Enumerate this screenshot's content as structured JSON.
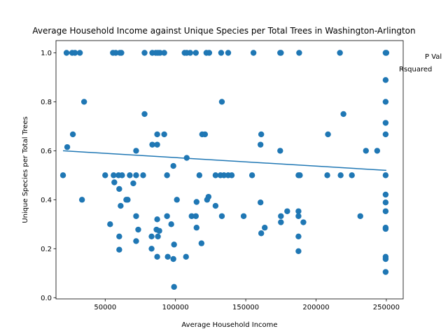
{
  "chart_data": {
    "type": "scatter",
    "title": "Average Household Income against Unique Species per Total Trees in Washington-Arlington",
    "xlabel": "Average Household Income",
    "ylabel": "Unique Species per Total Trees",
    "xlim": [
      15000,
      262000
    ],
    "ylim": [
      -0.005,
      1.05
    ],
    "xticks": [
      50000,
      100000,
      150000,
      200000,
      250000
    ],
    "yticks": [
      0.0,
      0.2,
      0.4,
      0.6,
      0.8,
      1.0
    ],
    "xtick_labels": [
      "50000",
      "100000",
      "150000",
      "200000",
      "250000"
    ],
    "ytick_labels": [
      "0.0",
      "0.2",
      "0.4",
      "0.6",
      "0.8",
      "1.0"
    ],
    "annotations": [
      "P Val",
      "Rsquared"
    ],
    "point_color": "#1f77b4",
    "grid": false,
    "legend": "none",
    "trendline": {
      "x": [
        20000,
        250000
      ],
      "y": [
        0.6,
        0.52
      ]
    },
    "points": [
      [
        22500,
        1.0
      ],
      [
        26500,
        1.0
      ],
      [
        28500,
        1.0
      ],
      [
        32000,
        1.0
      ],
      [
        55500,
        1.0
      ],
      [
        57500,
        1.0
      ],
      [
        60500,
        1.0
      ],
      [
        61500,
        1.0
      ],
      [
        78000,
        1.0
      ],
      [
        83500,
        1.0
      ],
      [
        86000,
        1.0
      ],
      [
        87500,
        1.0
      ],
      [
        89000,
        1.0
      ],
      [
        92000,
        1.0
      ],
      [
        106500,
        1.0
      ],
      [
        108000,
        1.0
      ],
      [
        110500,
        1.0
      ],
      [
        114500,
        1.0
      ],
      [
        122000,
        1.0
      ],
      [
        124000,
        1.0
      ],
      [
        132500,
        1.0
      ],
      [
        137500,
        1.0
      ],
      [
        155500,
        1.0
      ],
      [
        174500,
        1.0
      ],
      [
        175000,
        1.0
      ],
      [
        188000,
        1.0
      ],
      [
        217000,
        1.0
      ],
      [
        249500,
        1.0
      ],
      [
        250000,
        1.0
      ],
      [
        249500,
        0.889
      ],
      [
        35000,
        0.8
      ],
      [
        133000,
        0.8
      ],
      [
        249500,
        0.8
      ],
      [
        78000,
        0.75
      ],
      [
        219500,
        0.75
      ],
      [
        249500,
        0.714
      ],
      [
        27000,
        0.667
      ],
      [
        87000,
        0.667
      ],
      [
        92000,
        0.667
      ],
      [
        119000,
        0.667
      ],
      [
        121000,
        0.667
      ],
      [
        161000,
        0.667
      ],
      [
        208500,
        0.667
      ],
      [
        249500,
        0.667
      ],
      [
        83500,
        0.625
      ],
      [
        87000,
        0.625
      ],
      [
        160500,
        0.625
      ],
      [
        23000,
        0.615
      ],
      [
        72000,
        0.6
      ],
      [
        174500,
        0.6
      ],
      [
        235500,
        0.6
      ],
      [
        243500,
        0.6
      ],
      [
        108000,
        0.571
      ],
      [
        98500,
        0.538
      ],
      [
        20000,
        0.5
      ],
      [
        50000,
        0.5
      ],
      [
        56000,
        0.5
      ],
      [
        59500,
        0.5
      ],
      [
        62000,
        0.5
      ],
      [
        67500,
        0.5
      ],
      [
        72000,
        0.5
      ],
      [
        77000,
        0.5
      ],
      [
        94000,
        0.5
      ],
      [
        117000,
        0.5
      ],
      [
        128500,
        0.5
      ],
      [
        132000,
        0.5
      ],
      [
        134500,
        0.5
      ],
      [
        137500,
        0.5
      ],
      [
        140000,
        0.5
      ],
      [
        154500,
        0.5
      ],
      [
        187500,
        0.5
      ],
      [
        188500,
        0.5
      ],
      [
        208000,
        0.5
      ],
      [
        217500,
        0.5
      ],
      [
        225500,
        0.5
      ],
      [
        249500,
        0.5
      ],
      [
        56500,
        0.471
      ],
      [
        70000,
        0.467
      ],
      [
        60000,
        0.444
      ],
      [
        249500,
        0.421
      ],
      [
        123500,
        0.412
      ],
      [
        65000,
        0.4
      ],
      [
        66000,
        0.4
      ],
      [
        33500,
        0.4
      ],
      [
        101000,
        0.4
      ],
      [
        122500,
        0.4
      ],
      [
        115000,
        0.391
      ],
      [
        160500,
        0.389
      ],
      [
        249500,
        0.389
      ],
      [
        61000,
        0.375
      ],
      [
        128500,
        0.375
      ],
      [
        179500,
        0.353
      ],
      [
        187500,
        0.353
      ],
      [
        249500,
        0.353
      ],
      [
        72000,
        0.333
      ],
      [
        94000,
        0.333
      ],
      [
        111500,
        0.333
      ],
      [
        114500,
        0.333
      ],
      [
        133000,
        0.333
      ],
      [
        148500,
        0.333
      ],
      [
        175000,
        0.333
      ],
      [
        187500,
        0.333
      ],
      [
        231500,
        0.333
      ],
      [
        87000,
        0.32
      ],
      [
        175000,
        0.308
      ],
      [
        191000,
        0.308
      ],
      [
        53500,
        0.3
      ],
      [
        97000,
        0.3
      ],
      [
        115000,
        0.286
      ],
      [
        163500,
        0.286
      ],
      [
        249500,
        0.286
      ],
      [
        249500,
        0.281
      ],
      [
        73500,
        0.278
      ],
      [
        86500,
        0.278
      ],
      [
        88500,
        0.273
      ],
      [
        161000,
        0.263
      ],
      [
        60000,
        0.25
      ],
      [
        83000,
        0.25
      ],
      [
        87500,
        0.25
      ],
      [
        187500,
        0.25
      ],
      [
        72000,
        0.231
      ],
      [
        99000,
        0.217
      ],
      [
        118500,
        0.222
      ],
      [
        83000,
        0.2
      ],
      [
        60000,
        0.196
      ],
      [
        187500,
        0.19
      ],
      [
        87000,
        0.167
      ],
      [
        94500,
        0.167
      ],
      [
        107500,
        0.167
      ],
      [
        98500,
        0.158
      ],
      [
        249500,
        0.167
      ],
      [
        249500,
        0.158
      ],
      [
        249500,
        0.105
      ],
      [
        99000,
        0.044
      ]
    ]
  }
}
